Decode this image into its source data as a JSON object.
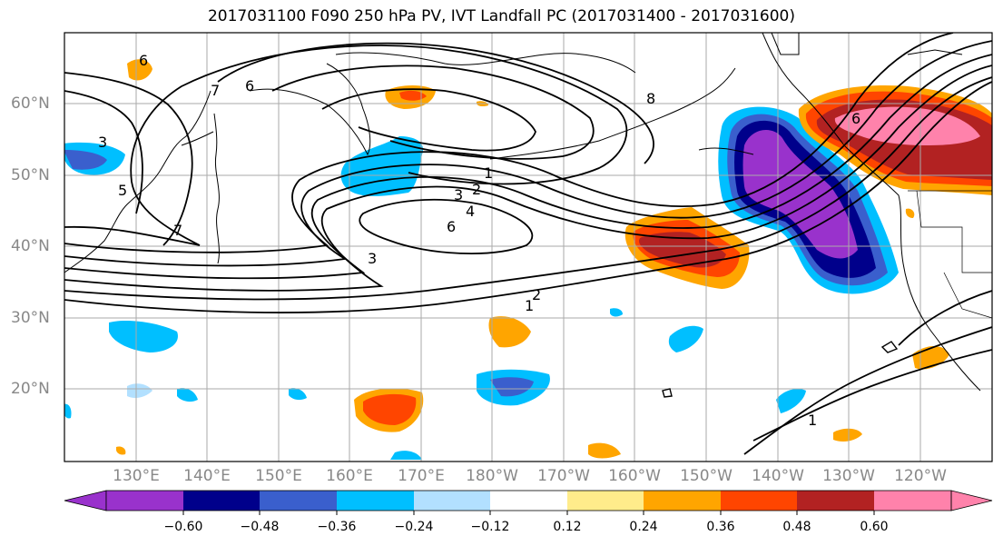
{
  "title": "2017031100 F090 250 hPa PV, IVT Landfall PC (2017031400 - 2017031600)",
  "lat_labels": [
    "60°N",
    "50°N",
    "40°N",
    "30°N",
    "20°N"
  ],
  "lon_labels": [
    "130°E",
    "140°E",
    "150°E",
    "160°E",
    "170°E",
    "180°W",
    "170°W",
    "160°W",
    "150°W",
    "140°W",
    "130°W",
    "120°W"
  ],
  "colorbar": {
    "ticks": [
      "−0.60",
      "−0.48",
      "−0.36",
      "−0.24",
      "−0.12",
      "0.12",
      "0.24",
      "0.36",
      "0.48",
      "0.60"
    ],
    "colors": [
      "#9932cc",
      "#00008b",
      "#3a5fcd",
      "#00bfff",
      "#b2e0ff",
      "#ffffff",
      "#ffec8b",
      "#ffa500",
      "#ff4500",
      "#b22222",
      "#ff82ab"
    ]
  },
  "contour_labels": [
    "1",
    "2",
    "3",
    "4",
    "5",
    "6",
    "7",
    "8"
  ]
}
